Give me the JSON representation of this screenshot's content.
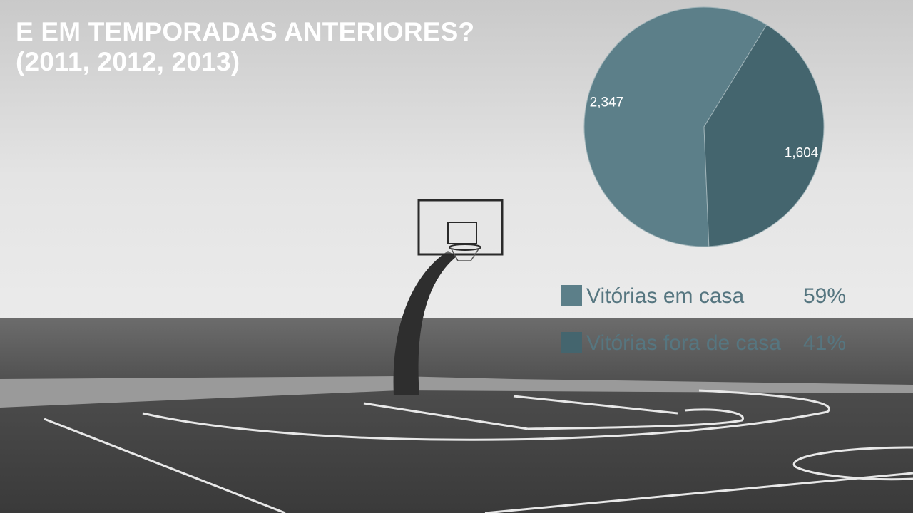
{
  "slide": {
    "title_lines": [
      "E EM TEMPORADAS ANTERIORES?",
      "(2011, 2012, 2013)"
    ]
  },
  "colors": {
    "home_slice": "#5c7f89",
    "away_slice": "#44656e",
    "legend_text": "#567680",
    "title_text": "#ffffff"
  },
  "chart_data": {
    "type": "pie",
    "title": "",
    "categories": [
      "Vitórias em casa",
      "Vitórias fora de casa"
    ],
    "values": [
      2347,
      1604
    ],
    "value_labels": [
      "2,347",
      "1,604"
    ],
    "percent_labels": [
      "59%",
      "41%"
    ],
    "legend_position": "bottom-right"
  }
}
